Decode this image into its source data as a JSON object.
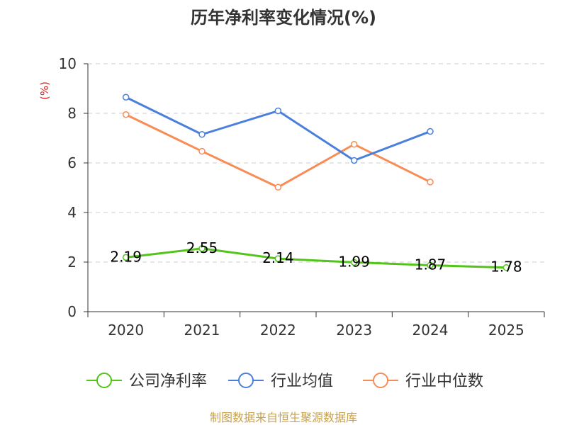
{
  "chart_data": {
    "type": "line",
    "title": "历年净利率变化情况(%)",
    "ylabel": "(%)",
    "xlabel": "",
    "categories": [
      "2020",
      "2021",
      "2022",
      "2023",
      "2024",
      "2025"
    ],
    "ylim": [
      0,
      10
    ],
    "yticks": [
      0,
      2,
      4,
      6,
      8,
      10
    ],
    "grid": true,
    "legend_position": "bottom",
    "series": [
      {
        "name": "公司净利率",
        "color": "#52c41a",
        "values": [
          2.19,
          2.55,
          2.14,
          1.99,
          1.87,
          1.78
        ],
        "labels": [
          "2.19",
          "2.55",
          "2.14",
          "1.99",
          "1.87",
          "1.78"
        ]
      },
      {
        "name": "行业均值",
        "color": "#4a7fdc",
        "values": [
          8.65,
          7.15,
          8.1,
          6.1,
          7.27,
          null
        ]
      },
      {
        "name": "行业中位数",
        "color": "#f78c55",
        "values": [
          7.95,
          6.47,
          5.02,
          6.75,
          5.23,
          null
        ]
      }
    ]
  },
  "footer": {
    "source": "制图数据来自恒生聚源数据库"
  },
  "colors": {
    "axis": "#333333",
    "grid": "#cccccc",
    "ylabel": "#e02020",
    "footer": "#c8a24a"
  }
}
